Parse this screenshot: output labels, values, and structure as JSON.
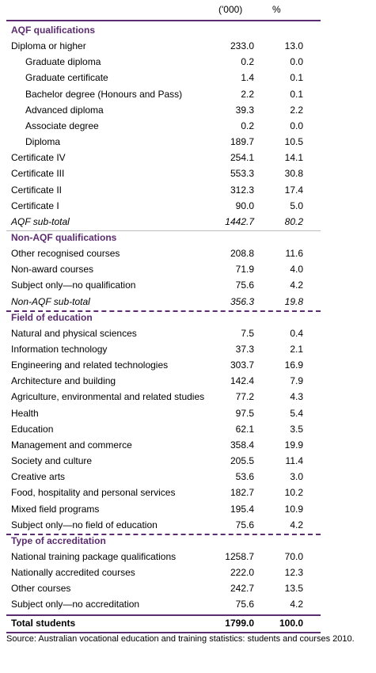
{
  "header": {
    "columns": [
      "('000)",
      "%"
    ]
  },
  "sections": [
    {
      "title": "AQF qualifications",
      "rows": [
        {
          "label": "Diploma or higher",
          "thousands": "233.0",
          "percent": "13.0",
          "rows": [
            {
              "label": "Graduate diploma",
              "thousands": "0.2",
              "percent": "0.0"
            },
            {
              "label": "Graduate certificate",
              "thousands": "1.4",
              "percent": "0.1"
            },
            {
              "label": "Bachelor degree (Honours and Pass)",
              "thousands": "2.2",
              "percent": "0.1"
            },
            {
              "label": "Advanced diploma",
              "thousands": "39.3",
              "percent": "2.2"
            },
            {
              "label": "Associate degree",
              "thousands": "0.2",
              "percent": "0.0"
            },
            {
              "label": "Diploma",
              "thousands": "189.7",
              "percent": "10.5"
            }
          ]
        },
        {
          "label": "Certificate IV",
          "thousands": "254.1",
          "percent": "14.1"
        },
        {
          "label": "Certificate III",
          "thousands": "553.3",
          "percent": "30.8"
        },
        {
          "label": "Certificate II",
          "thousands": "312.3",
          "percent": "17.4"
        },
        {
          "label": "Certificate I",
          "thousands": "90.0",
          "percent": "5.0"
        }
      ],
      "subtotal": {
        "label": "AQF sub-total",
        "thousands": "1442.7",
        "percent": "80.2"
      }
    },
    {
      "title": "Non-AQF qualifications",
      "rows": [
        {
          "label": "Other recognised courses",
          "thousands": "208.8",
          "percent": "11.6"
        },
        {
          "label": "Non-award courses",
          "thousands": "71.9",
          "percent": "4.0"
        },
        {
          "label": "Subject only—no qualification",
          "thousands": "75.6",
          "percent": "4.2"
        }
      ],
      "subtotal": {
        "label": "Non-AQF sub-total",
        "thousands": "356.3",
        "percent": "19.8"
      }
    },
    {
      "title": "Field of education",
      "rows": [
        {
          "label": "Natural and physical sciences",
          "thousands": "7.5",
          "percent": "0.4"
        },
        {
          "label": "Information technology",
          "thousands": "37.3",
          "percent": "2.1"
        },
        {
          "label": "Engineering and related technologies",
          "thousands": "303.7",
          "percent": "16.9"
        },
        {
          "label": "Architecture and building",
          "thousands": "142.4",
          "percent": "7.9"
        },
        {
          "label": "Agriculture, environmental and related studies",
          "thousands": "77.2",
          "percent": "4.3"
        },
        {
          "label": "Health",
          "thousands": "97.5",
          "percent": "5.4"
        },
        {
          "label": "Education",
          "thousands": "62.1",
          "percent": "3.5"
        },
        {
          "label": "Management and commerce",
          "thousands": "358.4",
          "percent": "19.9"
        },
        {
          "label": "Society and culture",
          "thousands": "205.5",
          "percent": "11.4"
        },
        {
          "label": "Creative arts",
          "thousands": "53.6",
          "percent": "3.0"
        },
        {
          "label": "Food, hospitality and personal services",
          "thousands": "182.7",
          "percent": "10.2"
        },
        {
          "label": "Mixed field programs",
          "thousands": "195.4",
          "percent": "10.9"
        },
        {
          "label": "Subject only—no field of education",
          "thousands": "75.6",
          "percent": "4.2"
        }
      ]
    },
    {
      "title": "Type of accreditation",
      "rows": [
        {
          "label": "National training package qualifications",
          "thousands": "1258.7",
          "percent": "70.0"
        },
        {
          "label": "Nationally accredited courses",
          "thousands": "222.0",
          "percent": "12.3"
        },
        {
          "label": "Other courses",
          "thousands": "242.7",
          "percent": "13.5"
        },
        {
          "label": "Subject only—no accreditation",
          "thousands": "75.6",
          "percent": "4.2"
        }
      ]
    }
  ],
  "total": {
    "label": "Total students",
    "thousands": "1799.0",
    "percent": "100.0"
  },
  "source": "Source: Australian vocational education and training statistics: students and courses 2010."
}
